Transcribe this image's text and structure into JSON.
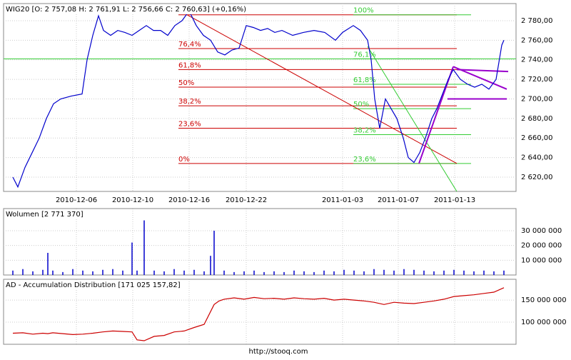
{
  "chart_data": [
    {
      "type": "line",
      "title": "WIG20 [O: 2 757,08  H: 2 761,91  L: 2 756,66  C: 2 760,63]  (+0,16%)",
      "x": [
        6,
        13,
        23,
        33,
        43,
        53,
        63,
        73,
        88,
        103,
        110,
        118,
        126,
        133,
        143,
        153,
        163,
        173,
        183,
        193,
        203,
        213,
        223,
        233,
        243,
        253,
        263,
        273,
        283,
        293,
        303,
        313,
        323,
        333,
        343,
        353,
        363,
        373,
        383,
        398,
        413,
        428,
        443,
        458,
        468,
        483,
        493,
        503,
        508,
        513,
        520,
        528,
        536,
        544,
        553,
        560,
        568,
        576,
        584,
        593,
        600,
        608,
        616,
        623,
        633,
        643,
        653,
        663,
        673,
        683,
        691,
        694
      ],
      "series": [
        {
          "color": "#0000cc",
          "values": [
            2620,
            2610,
            2630,
            2645,
            2660,
            2680,
            2695,
            2700,
            2703,
            2705,
            2740,
            2765,
            2785,
            2770,
            2765,
            2770,
            2768,
            2765,
            2770,
            2775,
            2770,
            2770,
            2765,
            2775,
            2780,
            2790,
            2775,
            2765,
            2760,
            2748,
            2745,
            2750,
            2752,
            2775,
            2773,
            2770,
            2772,
            2768,
            2770,
            2765,
            2768,
            2770,
            2768,
            2760,
            2768,
            2775,
            2770,
            2760,
            2740,
            2700,
            2670,
            2700,
            2690,
            2680,
            2660,
            2640,
            2635,
            2645,
            2660,
            2680,
            2690,
            2705,
            2720,
            2730,
            2720,
            2715,
            2712,
            2715,
            2710,
            2720,
            2755,
            2760
          ]
        }
      ],
      "xlim": [
        0,
        700
      ],
      "xticks": [
        {
          "value": 95,
          "label": "2010-12-06"
        },
        {
          "value": 174,
          "label": "2010-12-10"
        },
        {
          "value": 253,
          "label": "2010-12-16"
        },
        {
          "value": 333,
          "label": "2010-12-22"
        },
        {
          "value": 468,
          "label": "2011-01-03"
        },
        {
          "value": 546,
          "label": "2011-01-07"
        },
        {
          "value": 625,
          "label": "2011-01-13"
        }
      ],
      "ylim": [
        2605.4,
        2797.5
      ],
      "yticks": [
        {
          "value": 2620,
          "label": "2 620,00"
        },
        {
          "value": 2640,
          "label": "2 640,00"
        },
        {
          "value": 2660,
          "label": "2 660,00"
        },
        {
          "value": 2680,
          "label": "2 680,00"
        },
        {
          "value": 2700,
          "label": "2 700,00"
        },
        {
          "value": 2720,
          "label": "2 720,00"
        },
        {
          "value": 2740,
          "label": "2 740,00"
        },
        {
          "value": 2760,
          "label": "2 760,00"
        },
        {
          "value": 2780,
          "label": "2 780,00"
        }
      ],
      "grid": true,
      "reference_line": {
        "value": 2741,
        "color": "#33cc33"
      },
      "fib_levels": [
        {
          "color": "#cc0000",
          "x": [
            238,
            628
          ],
          "levels": [
            {
              "label": "100%",
              "value": 2786
            },
            {
              "label": "76,4%",
              "value": 2751.5
            },
            {
              "label": "61,8%",
              "value": 2730
            },
            {
              "label": "50%",
              "value": 2712
            },
            {
              "label": "38,2%",
              "value": 2693
            },
            {
              "label": "23,6%",
              "value": 2670
            },
            {
              "label": "0%",
              "value": 2634
            }
          ]
        },
        {
          "color": "#33cc33",
          "x": [
            483,
            648
          ],
          "levels": [
            {
              "label": "100%",
              "value": 2786
            },
            {
              "label": "76,1%",
              "value": 2741
            },
            {
              "label": "61,8%",
              "value": 2715
            },
            {
              "label": "50%",
              "value": 2690
            },
            {
              "label": "38,2%",
              "value": 2663.5
            },
            {
              "label": "23,6%",
              "value": 2634
            }
          ]
        }
      ],
      "trendlines": [
        {
          "color": "#cc0000",
          "x": [
            250,
            628
          ],
          "y": [
            2786,
            2634
          ]
        },
        {
          "color": "#33cc33",
          "x": [
            503,
            628
          ],
          "y": [
            2753.7,
            2605.4
          ]
        },
        {
          "color": "#9900cc",
          "x": [
            575,
            623
          ],
          "y": [
            2634,
            2733
          ]
        },
        {
          "color": "#9900cc",
          "x": [
            623,
            698
          ],
          "y": [
            2733,
            2710
          ]
        },
        {
          "color": "#9900cc",
          "x": [
            628,
            700
          ],
          "y": [
            2730,
            2728
          ]
        },
        {
          "color": "#9900cc",
          "x": [
            615,
            698
          ],
          "y": [
            2700,
            2700
          ]
        }
      ]
    },
    {
      "type": "bar",
      "title": "Wolumen [2 771 370]",
      "x": [
        6,
        20,
        34,
        48,
        55,
        62,
        76,
        90,
        104,
        118,
        132,
        146,
        160,
        173,
        180,
        190,
        204,
        218,
        232,
        246,
        260,
        274,
        283,
        288,
        302,
        316,
        330,
        344,
        358,
        372,
        386,
        400,
        414,
        428,
        442,
        456,
        470,
        484,
        498,
        512,
        526,
        540,
        554,
        568,
        582,
        596,
        610,
        624,
        638,
        652,
        666,
        680,
        694
      ],
      "series": [
        {
          "color": "#0000cc",
          "values": [
            3000000,
            4000000,
            2500000,
            3500000,
            15000000,
            3000000,
            2000000,
            4000000,
            3000000,
            2500000,
            3500000,
            4000000,
            3000000,
            22000000,
            3000000,
            37000000,
            3000000,
            2500000,
            4000000,
            3000000,
            3500000,
            2500000,
            13000000,
            30000000,
            3000000,
            2000000,
            2500000,
            3000000,
            2000000,
            2500000,
            2000000,
            3000000,
            2500000,
            2000000,
            3000000,
            2500000,
            3500000,
            3000000,
            2500000,
            4000000,
            3500000,
            3000000,
            4000000,
            3500000,
            3000000,
            2500000,
            3000000,
            3500000,
            3000000,
            2500000,
            3000000,
            2500000,
            3000000
          ]
        }
      ],
      "xlim": [
        0,
        700
      ],
      "ylim": [
        0,
        45000000
      ],
      "yticks": [
        {
          "value": 10000000,
          "label": "10 000 000"
        },
        {
          "value": 20000000,
          "label": "20 000 000"
        },
        {
          "value": 30000000,
          "label": "30 000 000"
        }
      ],
      "grid": true
    },
    {
      "type": "line",
      "title": "AD - Accumulation Distribution [171 025 157,82]",
      "x": [
        6,
        20,
        34,
        48,
        55,
        62,
        76,
        90,
        104,
        118,
        132,
        146,
        160,
        173,
        180,
        190,
        204,
        218,
        232,
        246,
        260,
        274,
        288,
        295,
        302,
        316,
        330,
        344,
        358,
        372,
        386,
        400,
        414,
        428,
        442,
        456,
        470,
        484,
        498,
        512,
        526,
        540,
        554,
        568,
        582,
        596,
        610,
        624,
        638,
        652,
        666,
        680,
        694
      ],
      "series": [
        {
          "color": "#cc0000",
          "values": [
            75000000,
            76000000,
            73000000,
            75000000,
            74000000,
            76000000,
            74000000,
            72000000,
            73000000,
            75000000,
            78000000,
            80000000,
            79000000,
            78000000,
            60000000,
            58000000,
            68000000,
            70000000,
            78000000,
            80000000,
            88000000,
            95000000,
            140000000,
            148000000,
            152000000,
            155000000,
            152000000,
            156000000,
            153000000,
            154000000,
            152000000,
            155000000,
            153000000,
            152000000,
            154000000,
            150000000,
            152000000,
            150000000,
            148000000,
            145000000,
            140000000,
            145000000,
            143000000,
            142000000,
            145000000,
            148000000,
            152000000,
            158000000,
            160000000,
            162000000,
            165000000,
            168000000,
            178000000
          ]
        }
      ],
      "xlim": [
        0,
        700
      ],
      "ylim": [
        50000000,
        197000000
      ],
      "yticks": [
        {
          "value": 100000000,
          "label": "100 000 000"
        },
        {
          "value": 150000000,
          "label": "150 000 000"
        }
      ],
      "grid": true
    }
  ],
  "footer": "http://stooq.com"
}
